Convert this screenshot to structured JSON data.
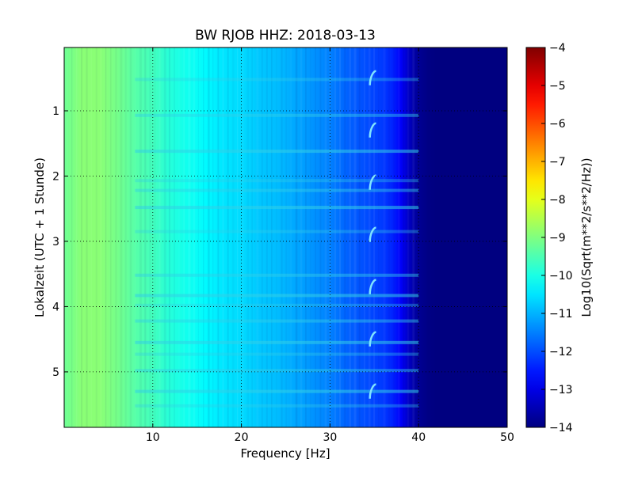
{
  "chart_data": {
    "type": "heatmap",
    "title": "BW RJOB HHZ: 2018-03-13",
    "xlabel": "Frequency [Hz]",
    "ylabel": "Lokalzeit (UTC + 1 Stunde)",
    "xlim": [
      0,
      50
    ],
    "ylim": [
      5.85,
      0.03
    ],
    "x_ticks": [
      10,
      20,
      30,
      40,
      50
    ],
    "y_ticks": [
      1,
      2,
      3,
      4,
      5
    ],
    "grid": true,
    "colormap": "jet",
    "colorbar": {
      "label": "Log10(Sqrt(m**2/s**2/Hz))",
      "range": [
        -14,
        -4
      ],
      "ticks": [
        -4,
        -5,
        -6,
        -7,
        -8,
        -9,
        -10,
        -11,
        -12,
        -13,
        -14
      ]
    },
    "power_profile": {
      "frequency_hz": [
        0,
        2,
        4,
        6,
        8,
        10,
        12,
        14,
        16,
        18,
        20,
        22,
        24,
        26,
        28,
        30,
        32,
        34,
        36,
        37,
        38,
        39,
        40,
        41,
        42,
        44,
        46,
        48,
        50
      ],
      "log10_psd": [
        -9.2,
        -8.9,
        -8.9,
        -9.1,
        -9.4,
        -9.6,
        -9.9,
        -10.1,
        -10.3,
        -10.5,
        -10.6,
        -10.8,
        -10.9,
        -11.1,
        -11.3,
        -11.5,
        -11.8,
        -12.0,
        -12.2,
        -12.4,
        -12.8,
        -13.4,
        -13.8,
        -13.95,
        -14.0,
        -14.0,
        -14.0,
        -14.0,
        -14.0
      ]
    },
    "horizontal_bands_hours": [
      0.52,
      1.07,
      1.62,
      2.07,
      2.22,
      2.48,
      2.85,
      3.52,
      3.83,
      3.98,
      4.22,
      4.55,
      4.73,
      4.98,
      5.3,
      5.52
    ],
    "tonal_feature": {
      "frequency_hz": [
        34.5,
        35.2
      ],
      "occurrences_hours": [
        0.5,
        1.3,
        2.1,
        2.9,
        3.7,
        4.5,
        5.3
      ],
      "duration_hours": 0.22
    }
  }
}
